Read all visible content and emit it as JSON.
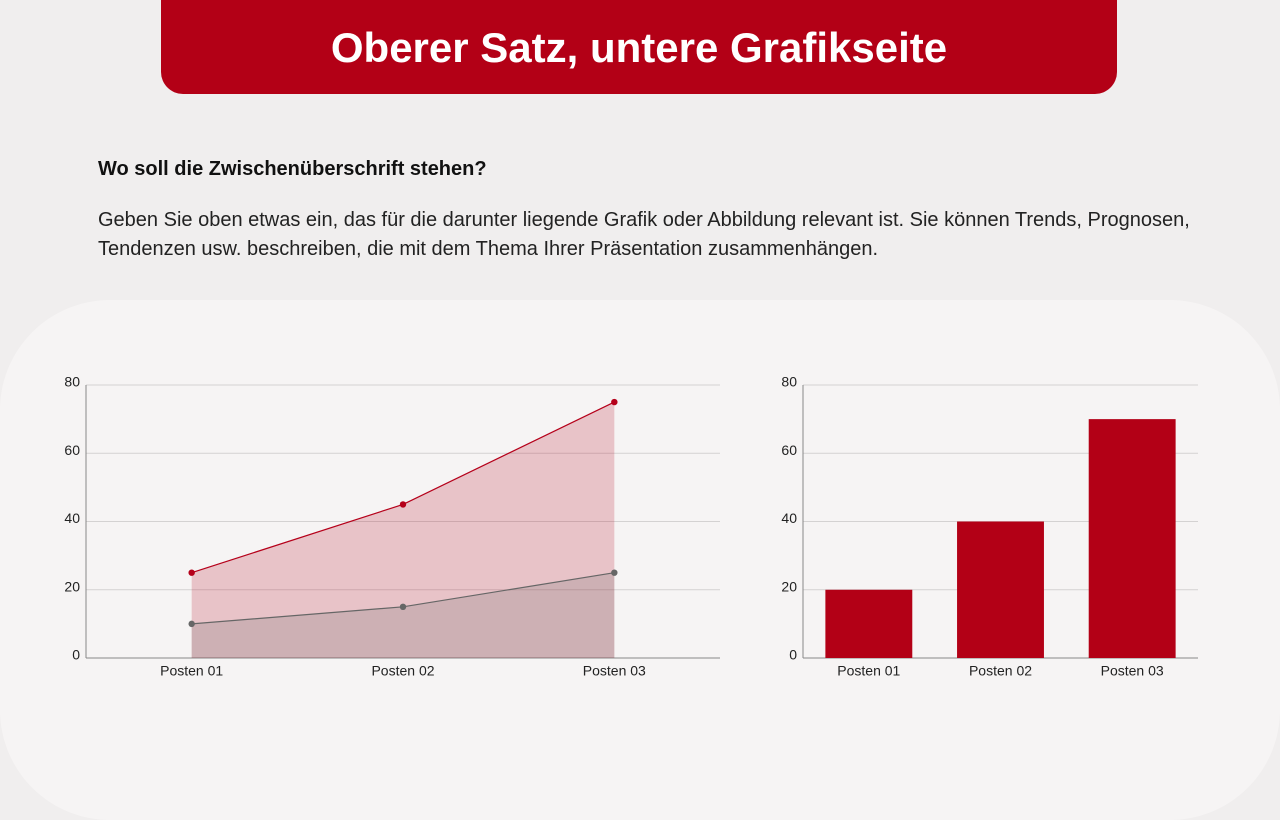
{
  "header": {
    "title": "Oberer Satz, untere Grafikseite"
  },
  "subtitle": "Wo soll die Zwischenüberschrift stehen?",
  "body": "Geben Sie oben etwas ein, das für die darunter liegende Grafik oder Abbildung relevant ist. Sie können Trends, Prognosen, Tendenzen usw. beschreiben, die mit dem Thema Ihrer Präsentation zusammenhängen.",
  "chart_data": [
    {
      "type": "area",
      "categories": [
        "Posten 01",
        "Posten 02",
        "Posten 03"
      ],
      "series": [
        {
          "color": "#b5001a",
          "values": [
            25,
            45,
            75
          ]
        },
        {
          "color": "#666666",
          "values": [
            10,
            15,
            25
          ]
        }
      ],
      "ylim": [
        0,
        80
      ],
      "yticks": [
        0,
        20,
        40,
        60,
        80
      ],
      "grid": true
    },
    {
      "type": "bar",
      "categories": [
        "Posten 01",
        "Posten 02",
        "Posten 03"
      ],
      "values": [
        20,
        40,
        70
      ],
      "color": "#b30016",
      "ylim": [
        0,
        80
      ],
      "yticks": [
        0,
        20,
        40,
        60,
        80
      ],
      "grid": true
    }
  ]
}
